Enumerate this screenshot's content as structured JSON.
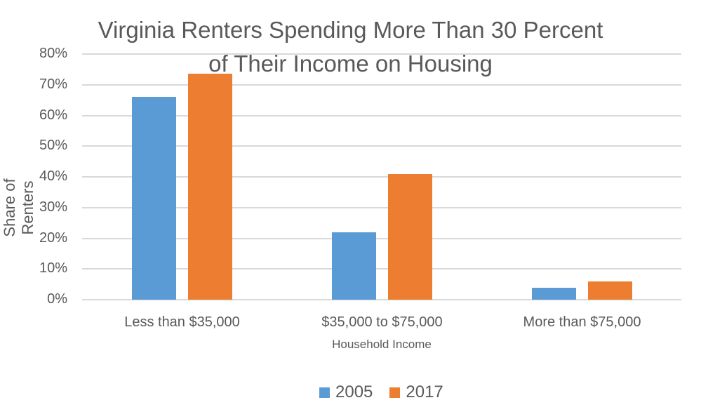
{
  "chart_data": {
    "type": "bar",
    "title": "Virginia Renters Spending More Than 30 Percent of Their Income on Housing",
    "title_lines": [
      "Virginia Renters Spending More Than 30 Percent",
      "of Their Income on Housing"
    ],
    "xlabel": "Household Income",
    "ylabel": "Share of Renters",
    "categories": [
      "Less than $35,000",
      "$35,000 to $75,000",
      "More than $75,000"
    ],
    "series": [
      {
        "name": "2005",
        "color": "#5b9bd5",
        "values": [
          66,
          22,
          4
        ]
      },
      {
        "name": "2017",
        "color": "#ed7d31",
        "values": [
          73.5,
          41,
          6
        ]
      }
    ],
    "ylim": [
      0,
      80
    ],
    "yticks": [
      "0%",
      "10%",
      "20%",
      "30%",
      "40%",
      "50%",
      "60%",
      "70%",
      "80%"
    ],
    "grid": true,
    "legend_position": "bottom"
  }
}
